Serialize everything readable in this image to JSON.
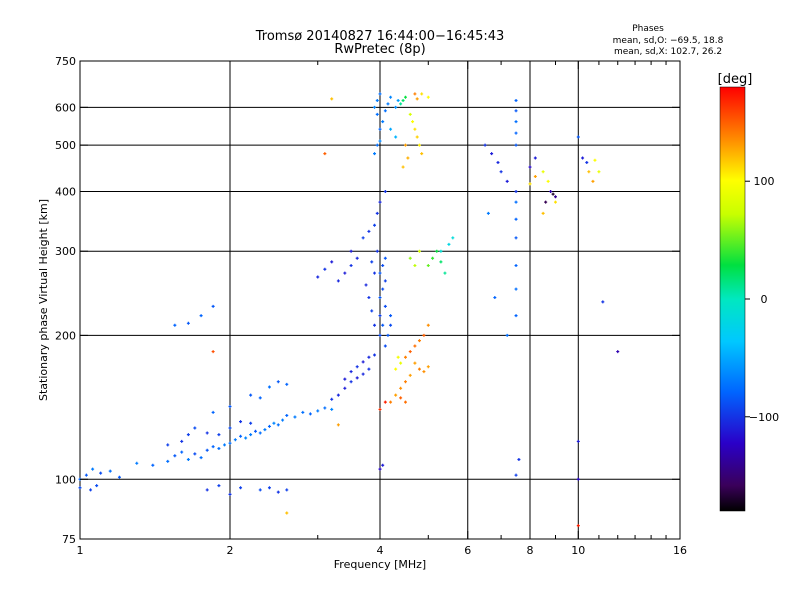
{
  "chart_data": {
    "type": "scatter",
    "title": "Tromsø 20140827 16:44:00−16:45:43",
    "subtitle": "RwPretec (8p)",
    "xlabel": "Frequency [MHz]",
    "ylabel": "Stationary phase Virtual Height [km]",
    "x_scale": "log",
    "y_scale": "log",
    "xlim": [
      1,
      16
    ],
    "ylim": [
      75,
      750
    ],
    "x_ticks": [
      1,
      2,
      4,
      6,
      8,
      10,
      16
    ],
    "x_tick_labels": [
      "1",
      "2",
      "4",
      "6",
      "8",
      "10",
      "16"
    ],
    "x_grid": [
      2,
      4,
      6,
      8,
      10
    ],
    "y_ticks": [
      75,
      100,
      200,
      300,
      400,
      500,
      600,
      750
    ],
    "y_tick_labels": [
      "75",
      "100",
      "200",
      "300",
      "400",
      "500",
      "600",
      "750"
    ],
    "y_grid": [
      100,
      200,
      300,
      400,
      500,
      600
    ],
    "grid": true,
    "stats": {
      "heading": "Phases",
      "line_o": "mean, sd,O: −69.5, 18.8",
      "line_x": "mean, sd,X: 102.7, 26.2"
    },
    "colorbar": {
      "label": "[deg]",
      "range": [
        -180,
        180
      ],
      "ticks": [
        100,
        0,
        -100
      ],
      "tick_labels": [
        "100",
        "0",
        "−100"
      ]
    },
    "points": [
      [
        1.0,
        100,
        -80
      ],
      [
        1.03,
        102,
        -85
      ],
      [
        1.06,
        105,
        -70
      ],
      [
        1.1,
        103,
        -90
      ],
      [
        1.15,
        104,
        -75
      ],
      [
        1.2,
        101,
        -85
      ],
      [
        1.0,
        96,
        -90
      ],
      [
        1.05,
        95,
        -95
      ],
      [
        1.08,
        97,
        -90
      ],
      [
        1.3,
        108,
        -70
      ],
      [
        1.4,
        107,
        -80
      ],
      [
        1.5,
        109,
        -75
      ],
      [
        1.55,
        112,
        -85
      ],
      [
        1.6,
        114,
        -80
      ],
      [
        1.65,
        110,
        -70
      ],
      [
        1.7,
        113,
        -90
      ],
      [
        1.75,
        111,
        -75
      ],
      [
        1.8,
        115,
        -85
      ],
      [
        1.85,
        117,
        -80
      ],
      [
        1.9,
        116,
        -75
      ],
      [
        1.95,
        118,
        -70
      ],
      [
        2.0,
        119,
        -75
      ],
      [
        2.05,
        121,
        -70
      ],
      [
        2.1,
        123,
        -80
      ],
      [
        2.15,
        122,
        -65
      ],
      [
        2.2,
        124,
        -70
      ],
      [
        2.25,
        126,
        -85
      ],
      [
        2.3,
        125,
        -75
      ],
      [
        2.35,
        127,
        -70
      ],
      [
        2.4,
        129,
        -80
      ],
      [
        2.45,
        131,
        -65
      ],
      [
        2.5,
        130,
        -75
      ],
      [
        2.55,
        133,
        -70
      ],
      [
        2.6,
        136,
        -80
      ],
      [
        2.7,
        135,
        -70
      ],
      [
        2.8,
        138,
        -75
      ],
      [
        2.9,
        137,
        -80
      ],
      [
        3.0,
        139,
        -70
      ],
      [
        3.1,
        141,
        -75
      ],
      [
        3.2,
        140,
        -65
      ],
      [
        1.5,
        118,
        -95
      ],
      [
        1.6,
        120,
        -100
      ],
      [
        1.65,
        124,
        -95
      ],
      [
        1.7,
        128,
        -90
      ],
      [
        1.8,
        125,
        -100
      ],
      [
        1.9,
        124,
        -95
      ],
      [
        2.0,
        128,
        -90
      ],
      [
        2.1,
        132,
        -100
      ],
      [
        2.2,
        131,
        -95
      ],
      [
        1.85,
        138,
        -80
      ],
      [
        2.0,
        142,
        -85
      ],
      [
        2.2,
        150,
        -85
      ],
      [
        2.3,
        148,
        -80
      ],
      [
        2.4,
        156,
        -75
      ],
      [
        2.5,
        160,
        -85
      ],
      [
        2.6,
        158,
        -80
      ],
      [
        1.8,
        95,
        -100
      ],
      [
        1.9,
        97,
        -95
      ],
      [
        2.0,
        93,
        -100
      ],
      [
        2.1,
        96,
        -95
      ],
      [
        2.3,
        95,
        -90
      ],
      [
        2.4,
        96,
        -95
      ],
      [
        2.5,
        94,
        -100
      ],
      [
        2.6,
        95,
        -95
      ],
      [
        1.55,
        210,
        -80
      ],
      [
        1.65,
        212,
        -85
      ],
      [
        1.75,
        220,
        -80
      ],
      [
        1.85,
        230,
        -85
      ],
      [
        3.2,
        147,
        -100
      ],
      [
        3.3,
        150,
        -105
      ],
      [
        3.4,
        155,
        -110
      ],
      [
        3.5,
        160,
        -100
      ],
      [
        3.6,
        163,
        -110
      ],
      [
        3.7,
        166,
        -105
      ],
      [
        3.8,
        170,
        -100
      ],
      [
        3.4,
        162,
        -110
      ],
      [
        3.5,
        168,
        -105
      ],
      [
        3.6,
        172,
        -100
      ],
      [
        3.7,
        176,
        -110
      ],
      [
        3.8,
        180,
        -105
      ],
      [
        3.9,
        182,
        -100
      ],
      [
        4.0,
        200,
        -90
      ],
      [
        4.05,
        210,
        -85
      ],
      [
        4.0,
        220,
        -95
      ],
      [
        4.1,
        230,
        -90
      ],
      [
        4.0,
        240,
        -85
      ],
      [
        4.05,
        250,
        -90
      ],
      [
        4.1,
        260,
        -95
      ],
      [
        4.0,
        270,
        -85
      ],
      [
        4.05,
        280,
        -90
      ],
      [
        4.1,
        290,
        -85
      ],
      [
        3.9,
        210,
        -100
      ],
      [
        3.85,
        225,
        -95
      ],
      [
        3.8,
        240,
        -100
      ],
      [
        3.75,
        255,
        -105
      ],
      [
        3.9,
        270,
        -100
      ],
      [
        3.85,
        285,
        -95
      ],
      [
        3.95,
        300,
        -100
      ],
      [
        4.1,
        190,
        -90
      ],
      [
        4.15,
        200,
        -85
      ],
      [
        4.2,
        210,
        -90
      ],
      [
        4.2,
        220,
        -85
      ],
      [
        3.3,
        260,
        -105
      ],
      [
        3.4,
        270,
        -110
      ],
      [
        3.5,
        280,
        -100
      ],
      [
        3.6,
        290,
        -105
      ],
      [
        3.5,
        300,
        -110
      ],
      [
        3.0,
        265,
        -105
      ],
      [
        3.1,
        275,
        -100
      ],
      [
        3.2,
        285,
        -110
      ],
      [
        3.7,
        320,
        -95
      ],
      [
        3.8,
        330,
        -100
      ],
      [
        3.9,
        340,
        -95
      ],
      [
        3.95,
        360,
        -100
      ],
      [
        4.0,
        380,
        -105
      ],
      [
        4.1,
        400,
        -100
      ],
      [
        4.0,
        105,
        -120
      ],
      [
        4.05,
        107,
        -110
      ],
      [
        3.9,
        480,
        -70
      ],
      [
        3.95,
        500,
        -75
      ],
      [
        4.0,
        510,
        -65
      ],
      [
        4.0,
        540,
        -80
      ],
      [
        4.05,
        560,
        -70
      ],
      [
        3.95,
        580,
        -75
      ],
      [
        3.9,
        600,
        -65
      ],
      [
        3.95,
        620,
        -70
      ],
      [
        4.0,
        640,
        -75
      ],
      [
        4.1,
        590,
        -75
      ],
      [
        4.15,
        610,
        -70
      ],
      [
        4.2,
        630,
        -65
      ],
      [
        4.3,
        600,
        -60
      ],
      [
        4.35,
        620,
        -55
      ],
      [
        4.2,
        540,
        -50
      ],
      [
        4.3,
        520,
        -45
      ],
      [
        4.4,
        610,
        10
      ],
      [
        4.45,
        620,
        20
      ],
      [
        4.5,
        630,
        30
      ],
      [
        4.6,
        580,
        80
      ],
      [
        4.65,
        560,
        100
      ],
      [
        4.7,
        540,
        110
      ],
      [
        4.75,
        520,
        115
      ],
      [
        4.8,
        500,
        105
      ],
      [
        4.85,
        480,
        120
      ],
      [
        4.5,
        500,
        130
      ],
      [
        4.55,
        470,
        125
      ],
      [
        4.45,
        450,
        120
      ],
      [
        4.7,
        640,
        140
      ],
      [
        4.75,
        625,
        130
      ],
      [
        4.85,
        640,
        110
      ],
      [
        5.0,
        630,
        100
      ],
      [
        4.6,
        290,
        60
      ],
      [
        4.7,
        280,
        70
      ],
      [
        4.8,
        300,
        80
      ],
      [
        5.0,
        280,
        50
      ],
      [
        5.1,
        290,
        40
      ],
      [
        5.2,
        300,
        30
      ],
      [
        5.3,
        285,
        20
      ],
      [
        5.4,
        270,
        10
      ],
      [
        5.3,
        300,
        -10
      ],
      [
        5.5,
        310,
        -20
      ],
      [
        5.6,
        320,
        -15
      ],
      [
        4.3,
        150,
        130
      ],
      [
        4.4,
        155,
        135
      ],
      [
        4.5,
        160,
        140
      ],
      [
        4.6,
        165,
        130
      ],
      [
        4.4,
        148,
        150
      ],
      [
        4.5,
        145,
        145
      ],
      [
        4.2,
        145,
        140
      ],
      [
        4.5,
        180,
        140
      ],
      [
        4.6,
        185,
        150
      ],
      [
        4.7,
        190,
        145
      ],
      [
        4.8,
        195,
        140
      ],
      [
        4.9,
        200,
        150
      ],
      [
        5.0,
        210,
        135
      ],
      [
        4.7,
        175,
        130
      ],
      [
        4.8,
        170,
        140
      ],
      [
        4.9,
        168,
        135
      ],
      [
        5.0,
        172,
        130
      ],
      [
        4.3,
        170,
        100
      ],
      [
        4.4,
        175,
        90
      ],
      [
        4.35,
        180,
        95
      ],
      [
        4.1,
        145,
        170
      ],
      [
        4.0,
        140,
        165
      ],
      [
        3.2,
        625,
        120
      ],
      [
        3.1,
        480,
        150
      ],
      [
        3.3,
        130,
        130
      ],
      [
        2.6,
        85,
        120
      ],
      [
        1.85,
        185,
        155
      ],
      [
        6.5,
        500,
        -100
      ],
      [
        6.7,
        480,
        -110
      ],
      [
        6.9,
        460,
        -105
      ],
      [
        7.0,
        440,
        -100
      ],
      [
        7.2,
        420,
        -110
      ],
      [
        7.5,
        400,
        -100
      ],
      [
        7.5,
        620,
        -80
      ],
      [
        7.5,
        590,
        -85
      ],
      [
        7.5,
        560,
        -75
      ],
      [
        7.5,
        530,
        -80
      ],
      [
        7.5,
        500,
        -85
      ],
      [
        7.5,
        380,
        -75
      ],
      [
        7.5,
        350,
        -80
      ],
      [
        7.5,
        320,
        -85
      ],
      [
        7.5,
        280,
        -80
      ],
      [
        7.5,
        250,
        -75
      ],
      [
        7.5,
        220,
        -80
      ],
      [
        7.6,
        110,
        -100
      ],
      [
        7.5,
        102,
        -95
      ],
      [
        6.8,
        240,
        -80
      ],
      [
        6.6,
        360,
        -70
      ],
      [
        7.2,
        200,
        -75
      ],
      [
        8.0,
        450,
        -120
      ],
      [
        8.2,
        470,
        -110
      ],
      [
        8.5,
        440,
        90
      ],
      [
        8.7,
        420,
        100
      ],
      [
        8.8,
        400,
        -130
      ],
      [
        9.0,
        390,
        -140
      ],
      [
        8.6,
        380,
        -160
      ],
      [
        8.9,
        395,
        -170
      ],
      [
        9.0,
        380,
        110
      ],
      [
        8.5,
        360,
        120
      ],
      [
        10.2,
        470,
        -110
      ],
      [
        10.4,
        460,
        -100
      ],
      [
        10.5,
        440,
        120
      ],
      [
        10.7,
        420,
        130
      ],
      [
        10.8,
        465,
        100
      ],
      [
        11.0,
        440,
        90
      ],
      [
        10.0,
        520,
        -85
      ],
      [
        11.2,
        235,
        -100
      ],
      [
        12.0,
        185,
        -130
      ],
      [
        10.0,
        100,
        -120
      ],
      [
        10.0,
        80,
        170
      ],
      [
        10.0,
        120,
        -110
      ],
      [
        8.0,
        415,
        110
      ],
      [
        8.2,
        430,
        130
      ]
    ]
  }
}
